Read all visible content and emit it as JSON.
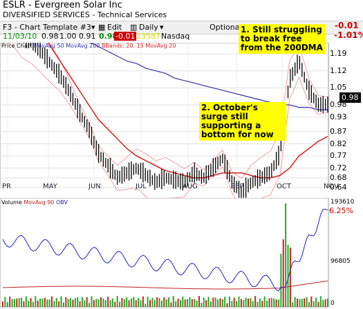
{
  "header": {
    "symbol": "ESLR",
    "company": "Evergreen Solar Inc",
    "sector": "DIVERSIFIED SERVICES",
    "industry": "Technical Services",
    "template": "F3 - Chart Template #3",
    "edit": "Edit",
    "period": "Daily",
    "optionable": "Optionable",
    "date": "11/03/10",
    "open": "0.98",
    "high": "1.00",
    "low": "0.91",
    "close": "0.98",
    "change": "-0.01",
    "volume": "23587",
    "exchange": "Nasdaq",
    "change_top": "-0.01",
    "change_pct": "-1.01%"
  },
  "legend": {
    "price": "Price Chart",
    "ma50": "MovAvg 50",
    "ma200": "MovAvg 200",
    "bbands": "BBands: 20, 15",
    "ma20": "MovAvg 20"
  },
  "vol_legend": {
    "volume": "Volume",
    "ma90": "MovAvg 90",
    "obv": "OBV"
  },
  "annotations": [
    "1. Still struggling to break free from the 200DMA",
    "2. October's surge still supporting a bottom for now"
  ],
  "last_price": "0.98",
  "corner_pct": "6.25%",
  "y_ticks": [
    "1.19",
    "1.12",
    "1.05",
    "0.98",
    "0.93",
    "0.87",
    "0.82",
    "0.77",
    "0.72",
    "0.68",
    "0.64"
  ],
  "x_ticks": [
    "PR",
    "MAY",
    "JUN",
    "JUL",
    "AUG",
    "SEP",
    "OCT",
    "NOV"
  ],
  "vol_labels": {
    "top": "193610",
    "mid": "96805",
    "zero": "0"
  },
  "colors": {
    "ma50": "#d42020",
    "ma200": "#3030b0",
    "bb": "#f0a0a0",
    "candle": "#000000",
    "highlight": "#ffff00"
  },
  "chart_data": {
    "type": "line",
    "title": "ESLR - Evergreen Solar Inc",
    "y_axis_ticks": [
      1.19,
      1.12,
      1.05,
      0.98,
      0.93,
      0.87,
      0.82,
      0.77,
      0.72,
      0.68,
      0.64
    ],
    "x_axis_months": [
      "PR",
      "MAY",
      "JUN",
      "JUL",
      "AUG",
      "SEP",
      "OCT",
      "NOV"
    ],
    "series": [
      {
        "name": "Price",
        "values": [
          1.3,
          1.3,
          1.26,
          1.24,
          1.2,
          1.15,
          1.1,
          1.03,
          0.95,
          0.88,
          0.78,
          0.73,
          0.68,
          0.7,
          0.72,
          0.69,
          0.66,
          0.68,
          0.67,
          0.66,
          0.7,
          0.68,
          0.72,
          0.76,
          0.66,
          0.62,
          0.66,
          0.68,
          0.7,
          0.78,
          1.08,
          1.16,
          1.04,
          0.98,
          0.98
        ]
      },
      {
        "name": "MovAvg 50",
        "values": [
          1.44,
          1.42,
          1.38,
          1.33,
          1.28,
          1.22,
          1.16,
          1.1,
          1.04,
          0.98,
          0.92,
          0.88,
          0.84,
          0.8,
          0.77,
          0.75,
          0.73,
          0.71,
          0.7,
          0.69,
          0.68,
          0.68,
          0.69,
          0.7,
          0.7,
          0.7,
          0.69,
          0.68,
          0.68,
          0.69,
          0.72,
          0.77,
          0.8,
          0.83,
          0.85
        ]
      },
      {
        "name": "MovAvg 200",
        "values": [
          1.37,
          1.37,
          1.36,
          1.35,
          1.33,
          1.32,
          1.3,
          1.28,
          1.26,
          1.24,
          1.22,
          1.2,
          1.18,
          1.16,
          1.15,
          1.13,
          1.12,
          1.11,
          1.09,
          1.08,
          1.07,
          1.06,
          1.05,
          1.04,
          1.03,
          1.02,
          1.01,
          1.0,
          0.99,
          0.98,
          0.98,
          0.97,
          0.97,
          0.96,
          0.96
        ]
      }
    ]
  }
}
